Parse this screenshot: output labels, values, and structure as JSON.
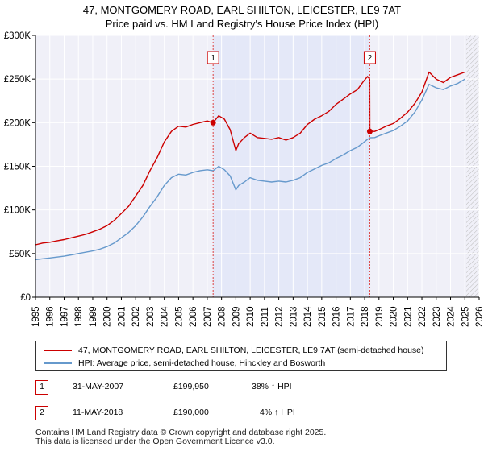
{
  "title_line1": "47, MONTGOMERY ROAD, EARL SHILTON, LEICESTER, LE9 7AT",
  "title_line2": "Price paid vs. HM Land Registry's House Price Index (HPI)",
  "chart_data": {
    "type": "line",
    "x_range": [
      1995,
      2026
    ],
    "ylim": [
      0,
      300000
    ],
    "y_ticks": [
      0,
      50000,
      100000,
      150000,
      200000,
      250000,
      300000
    ],
    "y_tick_labels": [
      "£0",
      "£50K",
      "£100K",
      "£150K",
      "£200K",
      "£250K",
      "£300K"
    ],
    "x_ticks": [
      1995,
      1996,
      1997,
      1998,
      1999,
      2000,
      2001,
      2002,
      2003,
      2004,
      2005,
      2006,
      2007,
      2008,
      2009,
      2010,
      2011,
      2012,
      2013,
      2014,
      2015,
      2016,
      2017,
      2018,
      2019,
      2020,
      2021,
      2022,
      2023,
      2024,
      2025,
      2026
    ],
    "x_tick_labels": [
      "1995",
      "1996",
      "1997",
      "1998",
      "1999",
      "2000",
      "2001",
      "2002",
      "2003",
      "2004",
      "2005",
      "2006",
      "2007",
      "2008",
      "2009",
      "2010",
      "2011",
      "2012",
      "2013",
      "2014",
      "2015",
      "2016",
      "2017",
      "2018",
      "2019",
      "2020",
      "2021",
      "2022",
      "2023",
      "2024",
      "2025",
      "2026"
    ],
    "grid": true,
    "shaded_region": [
      2007.41,
      2018.36
    ],
    "hatched_future_from": 2025.1,
    "series": [
      {
        "name": "47, MONTGOMERY ROAD, EARL SHILTON, LEICESTER, LE9 7AT (semi-detached house)",
        "color": "#cc0000",
        "x": [
          1995.0,
          1995.5,
          1996.0,
          1996.5,
          1997.0,
          1997.5,
          1998.0,
          1998.5,
          1999.0,
          1999.5,
          2000.0,
          2000.5,
          2001.0,
          2001.5,
          2002.0,
          2002.5,
          2003.0,
          2003.5,
          2004.0,
          2004.5,
          2005.0,
          2005.5,
          2006.0,
          2006.5,
          2007.0,
          2007.41,
          2007.8,
          2008.2,
          2008.6,
          2009.0,
          2009.2,
          2009.6,
          2010.0,
          2010.5,
          2011.0,
          2011.5,
          2012.0,
          2012.5,
          2013.0,
          2013.5,
          2014.0,
          2014.5,
          2015.0,
          2015.5,
          2016.0,
          2016.5,
          2017.0,
          2017.5,
          2017.9,
          2018.2,
          2018.35,
          2018.36,
          2018.7,
          2019.0,
          2019.5,
          2020.0,
          2020.5,
          2021.0,
          2021.5,
          2022.0,
          2022.5,
          2023.0,
          2023.5,
          2024.0,
          2024.5,
          2025.0
        ],
        "values": [
          60000,
          62000,
          63000,
          64500,
          66000,
          68000,
          70000,
          72000,
          75000,
          78000,
          82000,
          88000,
          96000,
          104000,
          116000,
          128000,
          145000,
          160000,
          178000,
          190000,
          196000,
          195000,
          198000,
          200000,
          202000,
          199950,
          208000,
          204000,
          192000,
          168000,
          176000,
          183000,
          188000,
          183000,
          182000,
          181000,
          183000,
          180000,
          183000,
          188000,
          198000,
          204000,
          208000,
          213000,
          221000,
          227000,
          233000,
          238000,
          247000,
          253000,
          250000,
          190000,
          190000,
          192000,
          196000,
          199000,
          205000,
          212000,
          222000,
          235000,
          258000,
          250000,
          246000,
          252000,
          255000,
          258000
        ]
      },
      {
        "name": "HPI: Average price, semi-detached house, Hinckley and Bosworth",
        "color": "#6699cc",
        "x": [
          1995.0,
          1995.5,
          1996.0,
          1996.5,
          1997.0,
          1997.5,
          1998.0,
          1998.5,
          1999.0,
          1999.5,
          2000.0,
          2000.5,
          2001.0,
          2001.5,
          2002.0,
          2002.5,
          2003.0,
          2003.5,
          2004.0,
          2004.5,
          2005.0,
          2005.5,
          2006.0,
          2006.5,
          2007.0,
          2007.41,
          2007.8,
          2008.2,
          2008.6,
          2009.0,
          2009.2,
          2009.6,
          2010.0,
          2010.5,
          2011.0,
          2011.5,
          2012.0,
          2012.5,
          2013.0,
          2013.5,
          2014.0,
          2014.5,
          2015.0,
          2015.5,
          2016.0,
          2016.5,
          2017.0,
          2017.5,
          2017.9,
          2018.2,
          2018.35,
          2018.36,
          2018.7,
          2019.0,
          2019.5,
          2020.0,
          2020.5,
          2021.0,
          2021.5,
          2022.0,
          2022.5,
          2023.0,
          2023.5,
          2024.0,
          2024.5,
          2025.0
        ],
        "values": [
          43000,
          44000,
          45000,
          46000,
          47000,
          48500,
          50000,
          51500,
          53000,
          55000,
          58000,
          62000,
          68000,
          74000,
          82000,
          92000,
          104000,
          115000,
          128000,
          137000,
          141000,
          140000,
          143000,
          145000,
          146000,
          144900,
          150000,
          146000,
          139000,
          123000,
          128000,
          132000,
          137000,
          134000,
          133000,
          132000,
          133000,
          132000,
          134000,
          137000,
          143000,
          147000,
          151000,
          154000,
          159000,
          163000,
          168000,
          172000,
          177000,
          181000,
          182000,
          182700,
          183000,
          185000,
          188000,
          191000,
          196000,
          202000,
          212000,
          226000,
          244000,
          240000,
          238000,
          242000,
          245000,
          250000
        ]
      }
    ],
    "annotations": [
      {
        "label": "1",
        "x": 2007.41,
        "y": 199950
      },
      {
        "label": "2",
        "x": 2018.36,
        "y": 190000
      }
    ]
  },
  "legend": {
    "property": "47, MONTGOMERY ROAD, EARL SHILTON, LEICESTER, LE9 7AT (semi-detached house)",
    "hpi": "HPI: Average price, semi-detached house, Hinckley and Bosworth"
  },
  "sales": [
    {
      "marker": "1",
      "date": "31-MAY-2007",
      "price": "£199,950",
      "hpi": "38% ↑ HPI"
    },
    {
      "marker": "2",
      "date": "11-MAY-2018",
      "price": "£190,000",
      "hpi": "4% ↑ HPI"
    }
  ],
  "footer_line1": "Contains HM Land Registry data © Crown copyright and database right 2025.",
  "footer_line2": "This data is licensed under the Open Government Licence v3.0."
}
